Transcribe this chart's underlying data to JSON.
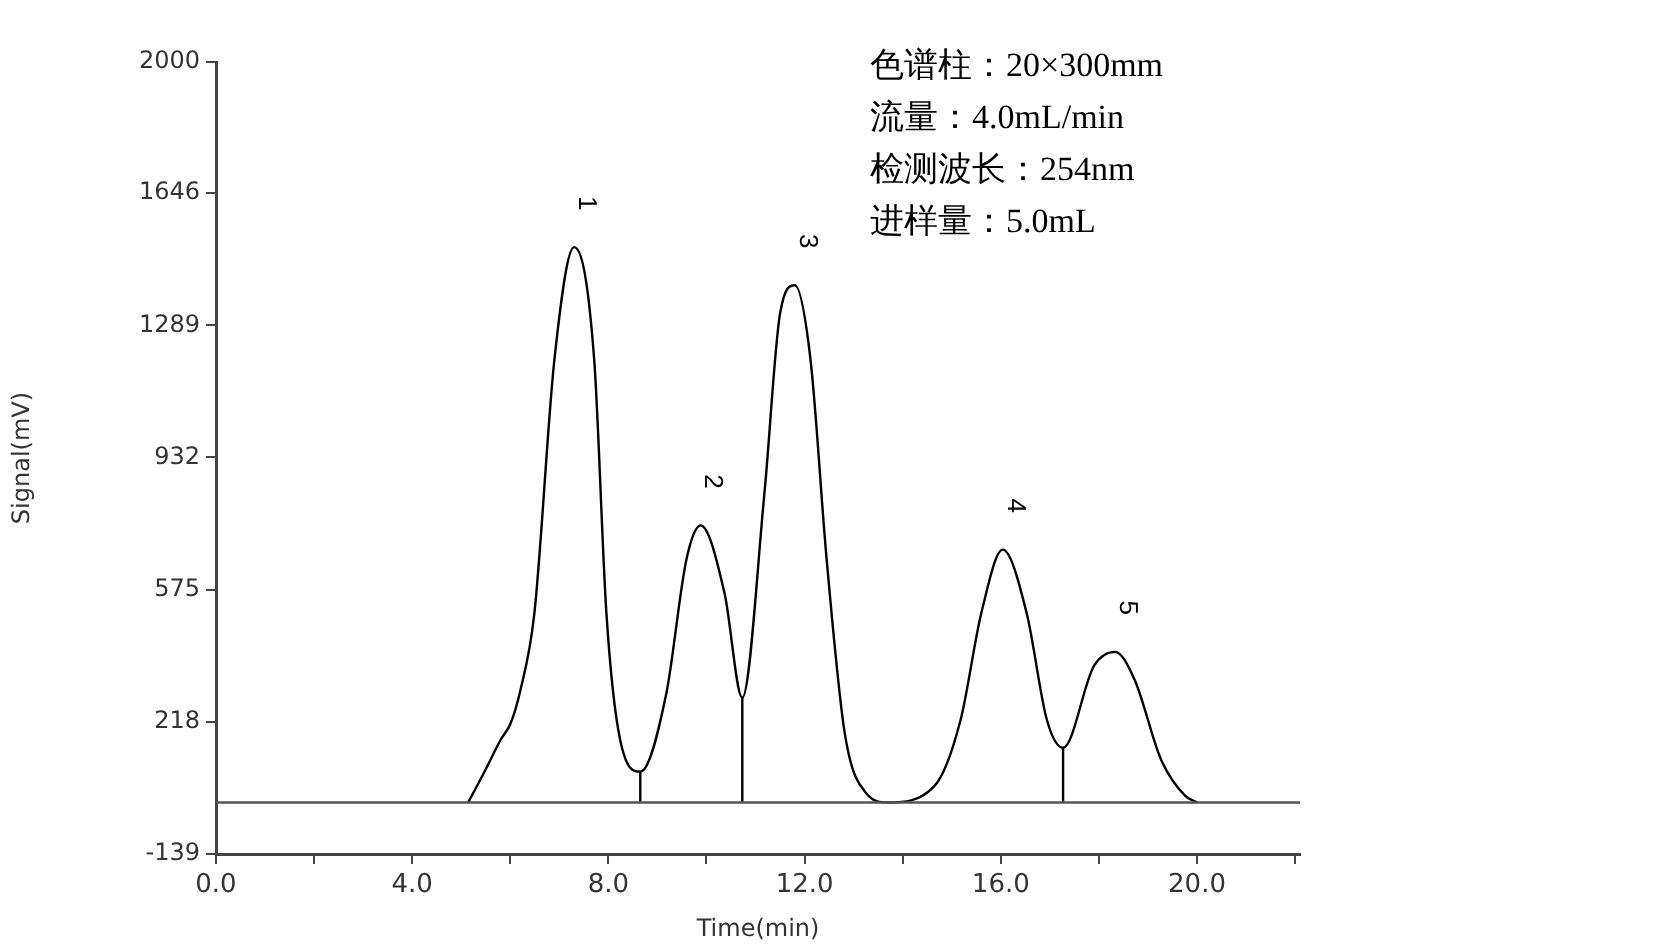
{
  "chart_data": {
    "type": "line",
    "xlabel": "Time(min)",
    "ylabel": "Signal(mV)",
    "xlim": [
      0,
      22.1
    ],
    "ylim": [
      -139,
      2000
    ],
    "xticks": [
      {
        "value": 0,
        "label": "0.0"
      },
      {
        "value": 2,
        "label": null
      },
      {
        "value": 4,
        "label": "4.0"
      },
      {
        "value": 6,
        "label": null
      },
      {
        "value": 8,
        "label": "8.0"
      },
      {
        "value": 10,
        "label": null
      },
      {
        "value": 12,
        "label": "12.0"
      },
      {
        "value": 14,
        "label": null
      },
      {
        "value": 16,
        "label": "16.0"
      },
      {
        "value": 18,
        "label": null
      },
      {
        "value": 20,
        "label": "20.0"
      },
      {
        "value": 22,
        "label": null
      }
    ],
    "yticks": [
      -139,
      218,
      575,
      932,
      1289,
      1646,
      2000
    ],
    "grid": false,
    "legend": false,
    "marker": "none",
    "line_style": "solid",
    "series": [
      {
        "color": "#000000",
        "x": [
          5.14,
          5.5,
          5.8,
          6.0,
          6.2,
          6.49,
          6.9,
          7.3,
          7.71,
          7.96,
          8.24,
          8.65,
          9.18,
          9.59,
          9.88,
          10.37,
          10.73,
          11.18,
          11.5,
          11.8,
          12.12,
          12.45,
          12.82,
          13.27,
          13.7,
          14.65,
          15.18,
          15.6,
          16.04,
          16.53,
          16.94,
          17.27,
          17.9,
          18.33,
          18.73,
          19.27,
          19.76,
          20.0
        ],
        "values": [
          0,
          90,
          169,
          212,
          300,
          510,
          1197,
          1500,
          1197,
          510,
          169,
          83,
          294,
          656,
          748,
          564,
          283,
          834,
          1321,
          1397,
          1197,
          656,
          186,
          23,
          0,
          45,
          223,
          510,
          683,
          510,
          223,
          148,
          369,
          407,
          331,
          115,
          18,
          0
        ]
      },
      {
        "color": "#000000",
        "x": [
          8.65,
          8.65,
          null,
          10.73,
          10.73,
          null,
          17.27,
          17.27
        ],
        "values": [
          0,
          83,
          null,
          0,
          283,
          null,
          0,
          148
        ]
      }
    ],
    "ref_lines": [
      {
        "axis": "y",
        "value": 0,
        "color": "#555555"
      }
    ],
    "annotations": [
      {
        "text": "1",
        "x": 7.3,
        "y": 1500
      },
      {
        "text": "2",
        "x": 9.88,
        "y": 748
      },
      {
        "text": "3",
        "x": 11.8,
        "y": 1397
      },
      {
        "text": "4",
        "x": 16.04,
        "y": 683
      },
      {
        "text": "5",
        "x": 18.33,
        "y": 407
      },
      "色谱柱：20×300mm",
      "流量：4.0mL/min",
      "检测波长：254nm",
      "进样量：5.0mL"
    ]
  }
}
